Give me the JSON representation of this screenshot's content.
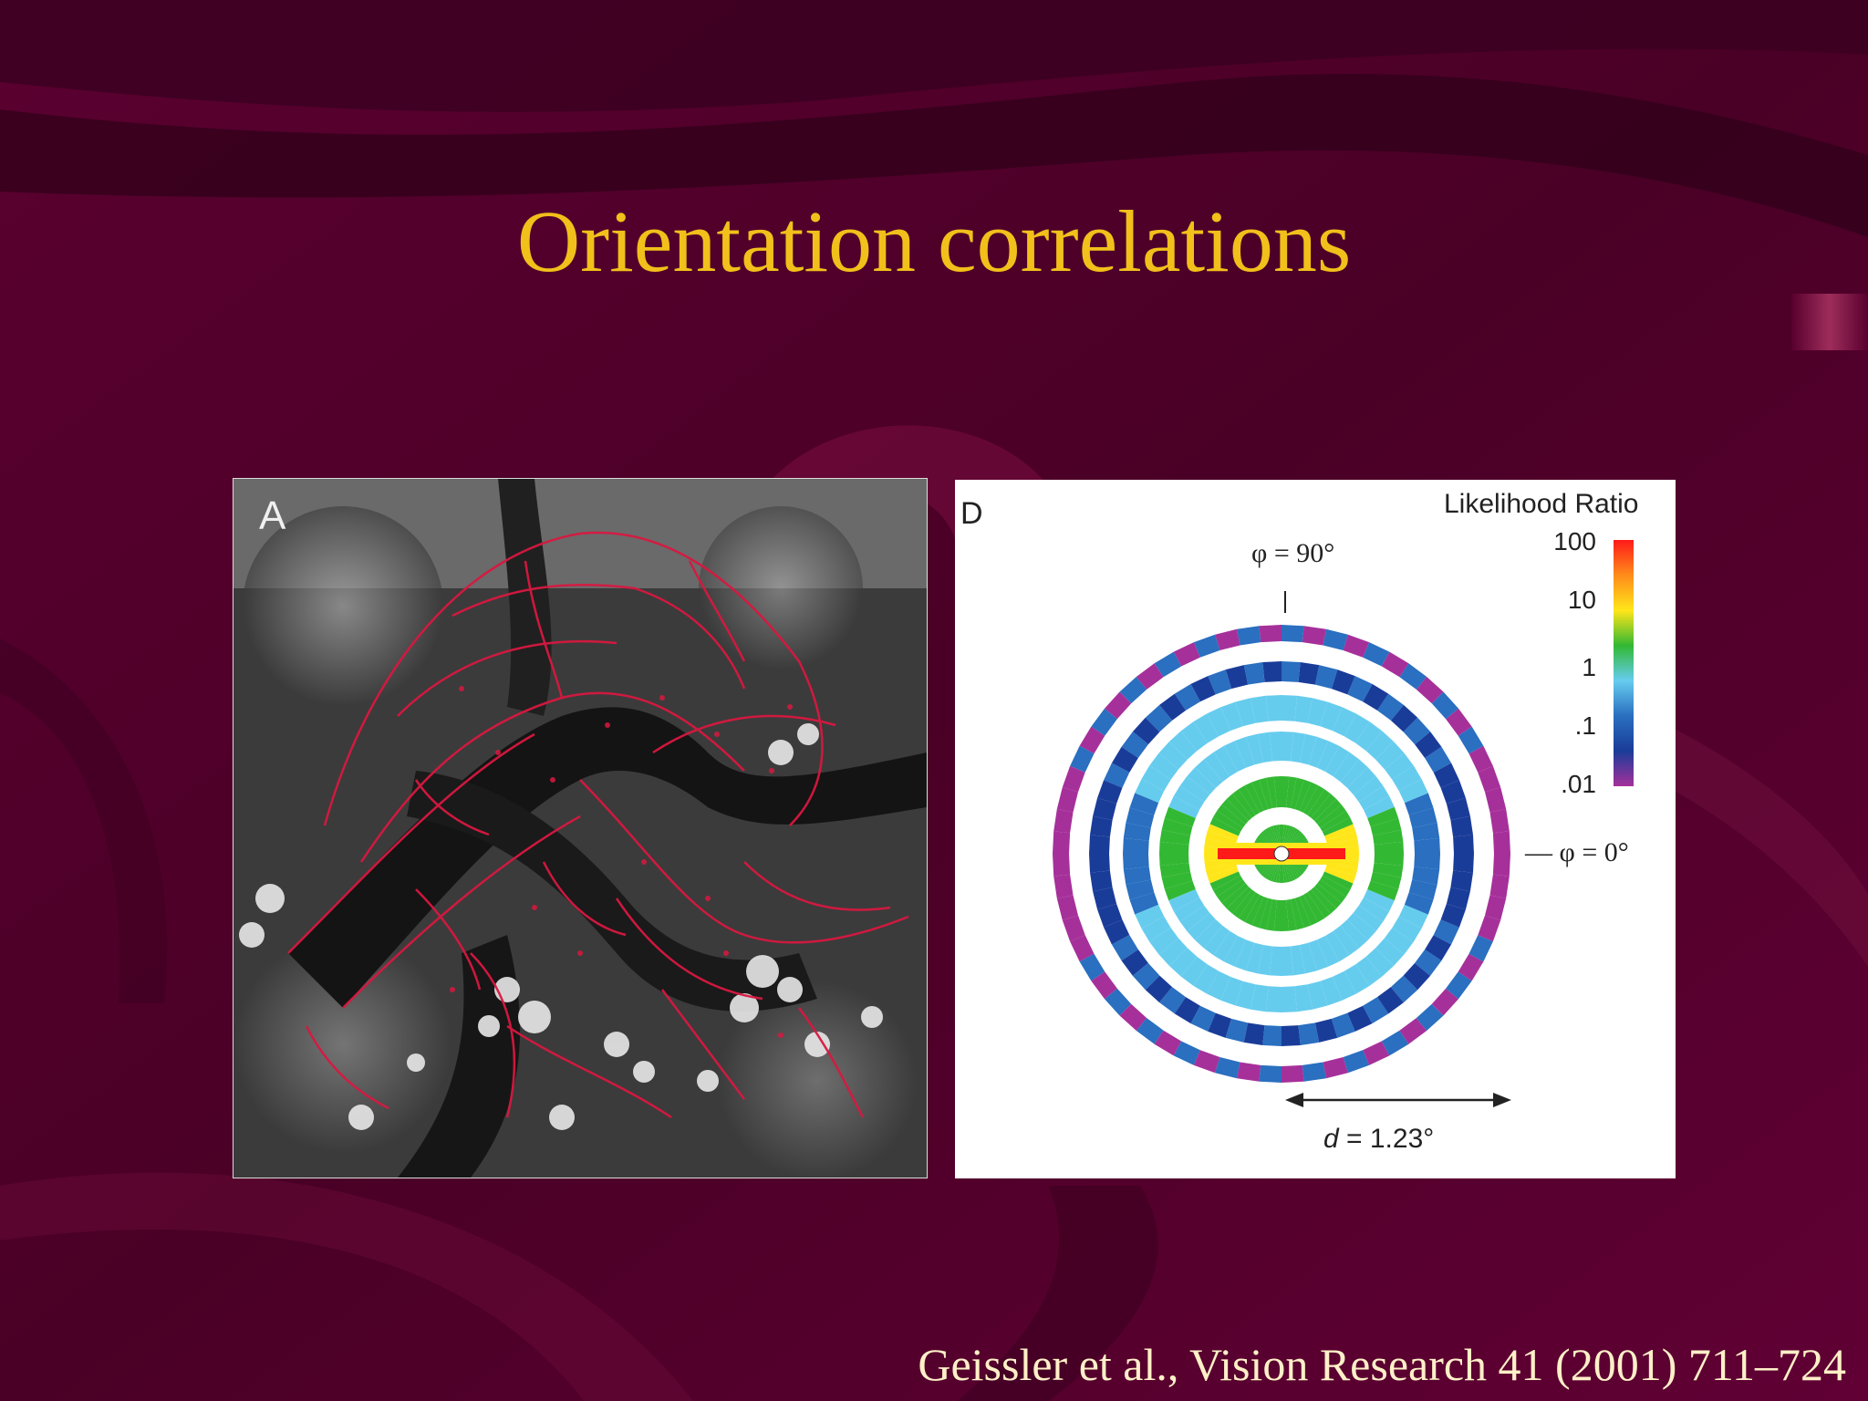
{
  "slide": {
    "title": "Orientation correlations",
    "citation": "Geissler et al., Vision Research 41 (2001) 711–724"
  },
  "panel_a": {
    "label": "A"
  },
  "panel_d": {
    "label": "D",
    "legend_title": "Likelihood Ratio",
    "legend_ticks": [
      "100",
      "10",
      "1",
      ".1",
      ".01"
    ],
    "phi_top": "φ = 90°",
    "phi_right": "— φ = 0°",
    "distance_var": "d",
    "distance_value": " = 1.23°"
  },
  "colors": {
    "background": "#5c0030",
    "title": "#f2c01a",
    "citation": "#fff0c8",
    "colormap": [
      "#ff1a1a",
      "#ff8c1a",
      "#ffe61a",
      "#33b833",
      "#66ccee",
      "#2a6fc0",
      "#1a3c99",
      "#a6309a"
    ]
  }
}
